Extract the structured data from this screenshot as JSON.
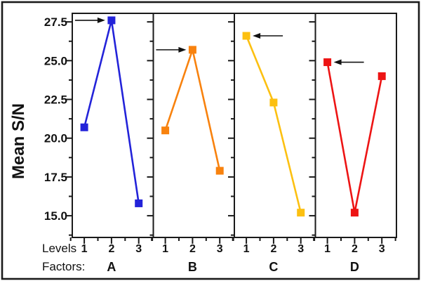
{
  "chart_data": {
    "type": "line",
    "title": "",
    "ylabel": "Mean S/N",
    "levels_label": "Levels",
    "factors_label": "Factors:",
    "level_tick_labels": [
      "1",
      "2",
      "3"
    ],
    "x_levels": [
      1,
      2,
      3
    ],
    "ylim": [
      13.6,
      28.05
    ],
    "yticks": [
      27.5,
      25.0,
      22.5,
      20.0,
      17.5,
      15.0
    ],
    "ytick_labels": [
      "27.5",
      "25.0",
      "22.5",
      "20.0",
      "17.5",
      "15.0"
    ],
    "y_minor_step": 1.25,
    "grid": "off",
    "legend": "none",
    "marker": "square",
    "panels": [
      {
        "factor": "A",
        "color": "#2323d9",
        "values": [
          20.7,
          27.6,
          15.8
        ],
        "marked_level": 2,
        "arrow_direction": "right"
      },
      {
        "factor": "B",
        "color": "#f8820e",
        "values": [
          20.5,
          25.7,
          17.9
        ],
        "marked_level": 2,
        "arrow_direction": "right"
      },
      {
        "factor": "C",
        "color": "#fcc011",
        "values": [
          26.6,
          22.3,
          15.2
        ],
        "marked_level": 1,
        "arrow_direction": "left"
      },
      {
        "factor": "D",
        "color": "#ed1414",
        "values": [
          24.9,
          15.2,
          24.0
        ],
        "marked_level": 1,
        "arrow_direction": "left"
      }
    ],
    "axis_color": "#1a1a1a",
    "background": "#ffffff",
    "frame_color": "#1a1a1a"
  }
}
